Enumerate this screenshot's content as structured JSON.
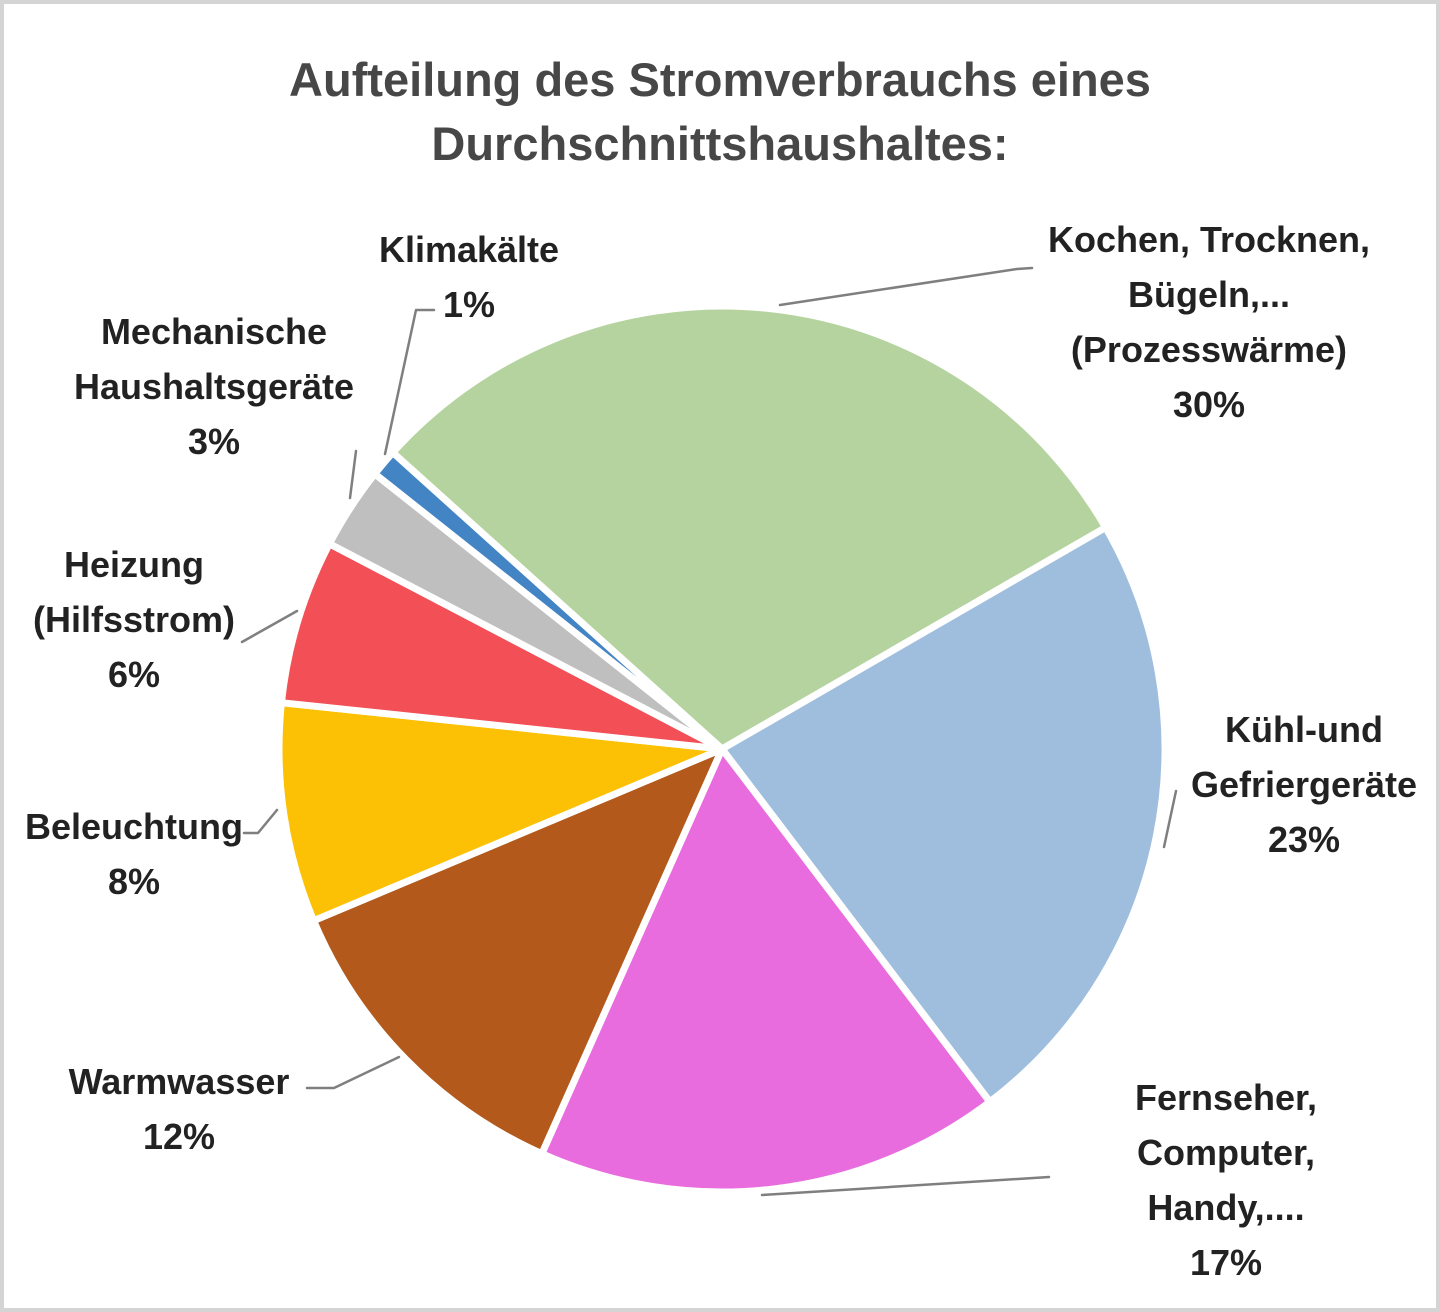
{
  "chart_data": {
    "type": "pie",
    "title_lines": [
      "Aufteilung des Stromverbrauchs eines",
      "Durchschnittshaushaltes:"
    ],
    "title": "Aufteilung des Stromverbrauchs eines Durchschnittshaushaltes:",
    "start_angle_deg_from_north": -48,
    "direction": "clockwise",
    "legend": "none",
    "total_pct": 100,
    "slices": [
      {
        "name": "Kochen, Trocknen, Bügeln,... (Prozesswärme)",
        "value_pct": 30,
        "color": "#b5d39e",
        "label_lines": [
          "Kochen, Trocknen,",
          "Bügeln,...",
          "(Prozesswärme)",
          "30%"
        ]
      },
      {
        "name": "Kühl-und Gefriergeräte",
        "value_pct": 23,
        "color": "#9fbedd",
        "label_lines": [
          "Kühl-und",
          "Gefriergeräte",
          "23%"
        ]
      },
      {
        "name": "Fernseher, Computer, Handy,....",
        "value_pct": 17,
        "color": "#e86cdd",
        "label_lines": [
          "Fernseher,",
          "Computer,",
          "Handy,....",
          "17%"
        ]
      },
      {
        "name": "Warmwasser",
        "value_pct": 12,
        "color": "#b2591b",
        "label_lines": [
          "Warmwasser",
          "12%"
        ]
      },
      {
        "name": "Beleuchtung",
        "value_pct": 8,
        "color": "#fcc004",
        "label_lines": [
          "Beleuchtung",
          "8%"
        ]
      },
      {
        "name": "Heizung (Hilfsstrom)",
        "value_pct": 6,
        "color": "#f25056",
        "label_lines": [
          "Heizung",
          "(Hilfsstrom)",
          "6%"
        ]
      },
      {
        "name": "Mechanische Haushaltsgeräte",
        "value_pct": 3,
        "color": "#bfbfbf",
        "label_lines": [
          "Mechanische",
          "Haushaltsgeräte",
          "3%"
        ]
      },
      {
        "name": "Klimakälte",
        "value_pct": 1,
        "color": "#4284c4",
        "label_lines": [
          "Klimakälte",
          "1%"
        ]
      }
    ],
    "colors": {
      "title_text": "#474747",
      "label_text": "#222222",
      "leader_line": "#7f7f7f",
      "slice_border": "#ffffff",
      "background": "#ffffff"
    }
  }
}
